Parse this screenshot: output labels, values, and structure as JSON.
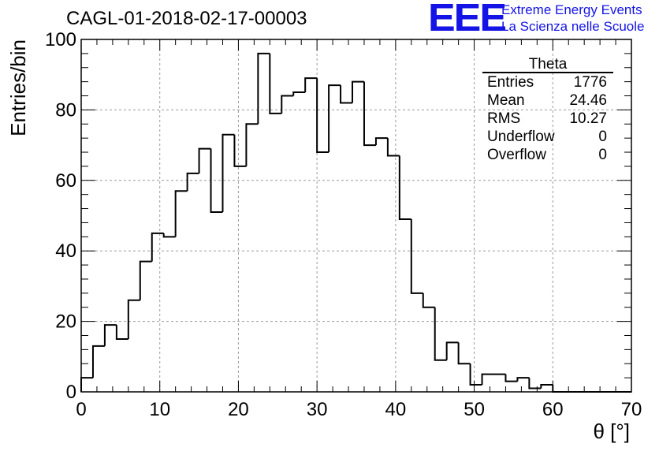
{
  "header": {
    "run_title": "CAGL-01-2018-02-17-00003",
    "logo_text": "EEE",
    "logo_line1": "Extreme Energy Events",
    "logo_line2": "La Scienza nelle Scuole",
    "logo_color": "#1414e6"
  },
  "stats_box": {
    "title": "Theta",
    "rows": [
      {
        "label": "Entries",
        "value": "1776"
      },
      {
        "label": "Mean",
        "value": "24.46"
      },
      {
        "label": "RMS",
        "value": "10.27"
      },
      {
        "label": "Underflow",
        "value": "0"
      },
      {
        "label": "Overflow",
        "value": "0"
      }
    ]
  },
  "chart_data": {
    "type": "bar",
    "histogram": true,
    "xlabel": "θ [°]",
    "ylabel": "Entries/bin",
    "xlim": [
      0,
      70
    ],
    "ylim": [
      0,
      100
    ],
    "grid": true,
    "bin_width": 1.5,
    "x_ticks": [
      0,
      10,
      20,
      30,
      40,
      50,
      60,
      70
    ],
    "y_ticks": [
      0,
      20,
      40,
      60,
      80,
      100
    ],
    "bin_edges_start": 0,
    "values": [
      4,
      13,
      19,
      15,
      26,
      37,
      45,
      44,
      57,
      62,
      69,
      51,
      73,
      64,
      76,
      96,
      79,
      84,
      85,
      89,
      68,
      87,
      82,
      88,
      70,
      72,
      67,
      49,
      28,
      24,
      9,
      14,
      8,
      2,
      5,
      5,
      3,
      4,
      1,
      2,
      0,
      0,
      0,
      0,
      0,
      0,
      0
    ],
    "line_color": "#000000"
  }
}
